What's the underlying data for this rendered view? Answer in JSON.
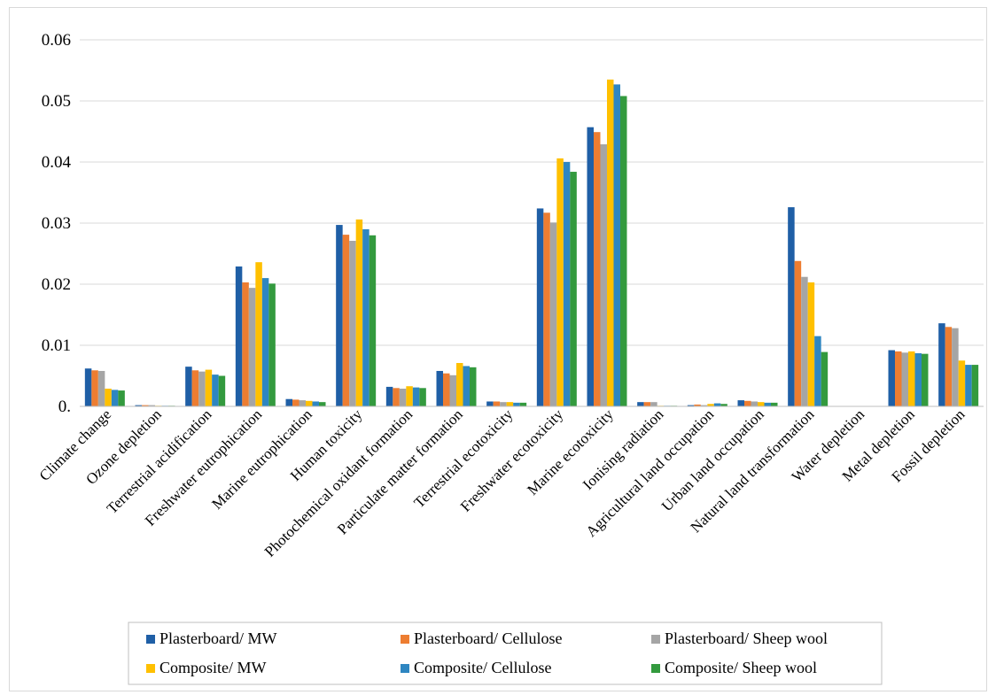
{
  "chart_data": {
    "type": "bar",
    "title": "",
    "xlabel": "",
    "ylabel": "",
    "ylim": [
      0,
      0.06
    ],
    "yticks": [
      "0.",
      "0.01",
      "0.02",
      "0.03",
      "0.04",
      "0.05",
      "0.06"
    ],
    "yticks_values": [
      0,
      0.01,
      0.02,
      0.03,
      0.04,
      0.05,
      0.06
    ],
    "grid": true,
    "legend_position": "bottom",
    "categories": [
      "Climate change",
      "Ozone depletion",
      "Terrestrial acidification",
      "Freshwater eutrophication",
      "Marine eutrophication",
      "Human toxicity",
      "Photochemical oxidant formation",
      "Particulate matter formation",
      "Terrestrial ecotoxicity",
      "Freshwater ecotoxicity",
      "Marine ecotoxicity",
      "Ionising radiation",
      "Agricultural land occupation",
      "Urban land occupation",
      "Natural land transformation",
      "Water depletion",
      "Metal depletion",
      "Fossil depletion"
    ],
    "series": [
      {
        "name": "Plasterboard/ MW",
        "color": "#1f5fa6",
        "values": [
          0.0062,
          0.0002,
          0.0065,
          0.0229,
          0.0012,
          0.0297,
          0.0032,
          0.0058,
          0.0008,
          0.0324,
          0.0457,
          0.0007,
          0.0002,
          0.001,
          0.0326,
          5e-05,
          0.0092,
          0.0136
        ]
      },
      {
        "name": "Plasterboard/ Cellulose",
        "color": "#ed7d31",
        "values": [
          0.0059,
          0.0002,
          0.0059,
          0.0203,
          0.0011,
          0.0281,
          0.003,
          0.0054,
          0.0008,
          0.0317,
          0.0449,
          0.0007,
          0.0003,
          0.0009,
          0.0238,
          5e-05,
          0.009,
          0.013
        ]
      },
      {
        "name": "Plasterboard/ Sheep wool",
        "color": "#a5a5a5",
        "values": [
          0.0058,
          0.0002,
          0.0057,
          0.0194,
          0.001,
          0.0271,
          0.0029,
          0.0051,
          0.0007,
          0.0301,
          0.0429,
          0.0007,
          0.0002,
          0.0008,
          0.0212,
          5e-05,
          0.0088,
          0.0128
        ]
      },
      {
        "name": "Composite/ MW",
        "color": "#ffc000",
        "values": [
          0.0029,
          0.0001,
          0.006,
          0.0236,
          0.0009,
          0.0306,
          0.0033,
          0.0071,
          0.0007,
          0.0406,
          0.0535,
          0.0001,
          0.0004,
          0.0007,
          0.0203,
          5e-05,
          0.009,
          0.0075
        ]
      },
      {
        "name": "Composite/ Cellulose",
        "color": "#2e86c1",
        "values": [
          0.0027,
          0.0001,
          0.0052,
          0.021,
          0.0008,
          0.029,
          0.0031,
          0.0066,
          0.0006,
          0.04,
          0.0527,
          0.0001,
          0.0005,
          0.0006,
          0.0115,
          5e-05,
          0.0087,
          0.0068
        ]
      },
      {
        "name": "Composite/ Sheep wool",
        "color": "#339a3e",
        "values": [
          0.0026,
          0.0001,
          0.005,
          0.0201,
          0.0007,
          0.028,
          0.003,
          0.0064,
          0.0006,
          0.0384,
          0.0508,
          0.0001,
          0.0004,
          0.0006,
          0.0089,
          5e-05,
          0.0086,
          0.0068
        ]
      }
    ]
  }
}
